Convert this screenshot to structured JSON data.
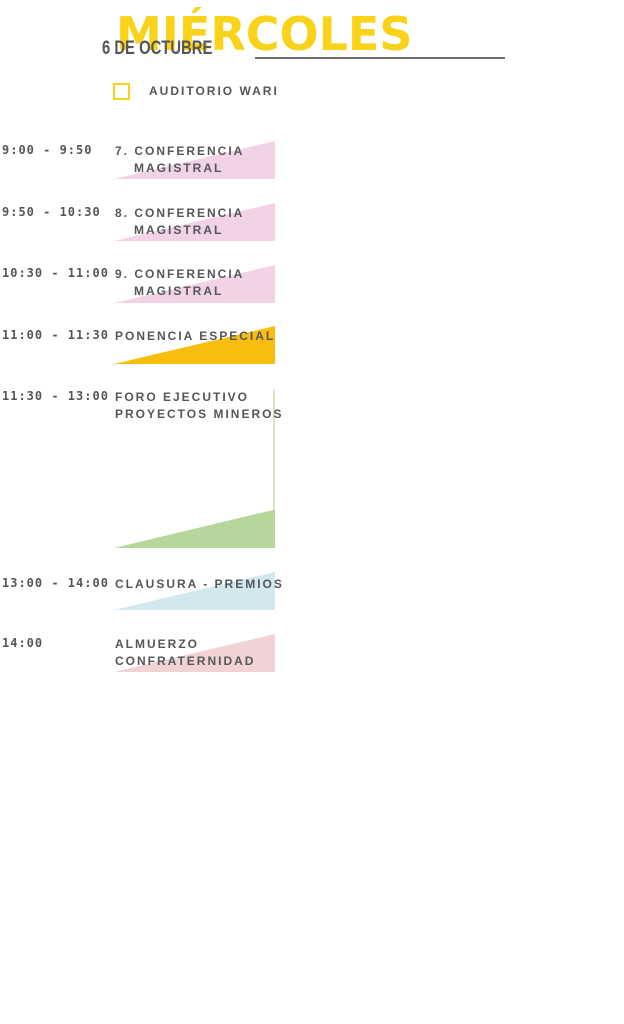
{
  "header": {
    "day": "MIÉRCOLES",
    "date": "6 DE OCTUBRE",
    "accent_color": "#f9d21a"
  },
  "legend": {
    "label": "AUDITORIO WARI",
    "icon": "square-outline-icon",
    "color": "#f9d21a"
  },
  "schedule": [
    {
      "time": "9:00 - 9:50",
      "title_lines": [
        "7. CONFERENCIA",
        "MAGISTRAL"
      ],
      "color": "#f2d3e6"
    },
    {
      "time": "9:50 - 10:30",
      "title_lines": [
        "8. CONFERENCIA",
        "MAGISTRAL"
      ],
      "color": "#f2d3e6"
    },
    {
      "time": "10:30 - 11:00",
      "title_lines": [
        "9. CONFERENCIA",
        "MAGISTRAL"
      ],
      "color": "#f2d3e6"
    },
    {
      "time": "11:00 - 11:30",
      "title_lines": [
        "PONENCIA ESPECIAL"
      ],
      "color": "#f7bd0f"
    },
    {
      "time": "11:30 - 13:00",
      "title_lines": [
        "FORO EJECUTIVO",
        "PROYECTOS MINEROS"
      ],
      "color": "#b7d69b"
    },
    {
      "time": "13:00 - 14:00",
      "title_lines": [
        "CLAUSURA - PREMIOS"
      ],
      "color": "#d2e8ee"
    },
    {
      "time": "14:00",
      "title_lines": [
        "ALMUERZO",
        "CONFRATERNIDAD"
      ],
      "color": "#f1d3d5"
    }
  ]
}
